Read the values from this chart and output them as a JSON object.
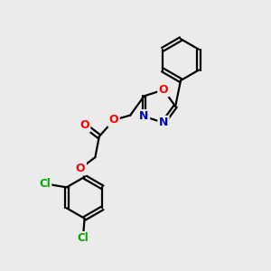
{
  "bg_color": "#ebebeb",
  "bond_color": "#000000",
  "bond_width": 1.6,
  "atom_colors": {
    "O": "#ff0000",
    "N": "#0000cc",
    "Cl": "#00aa00",
    "C": "#000000"
  },
  "font_size": 9,
  "figsize": [
    3.0,
    3.0
  ],
  "dpi": 100
}
